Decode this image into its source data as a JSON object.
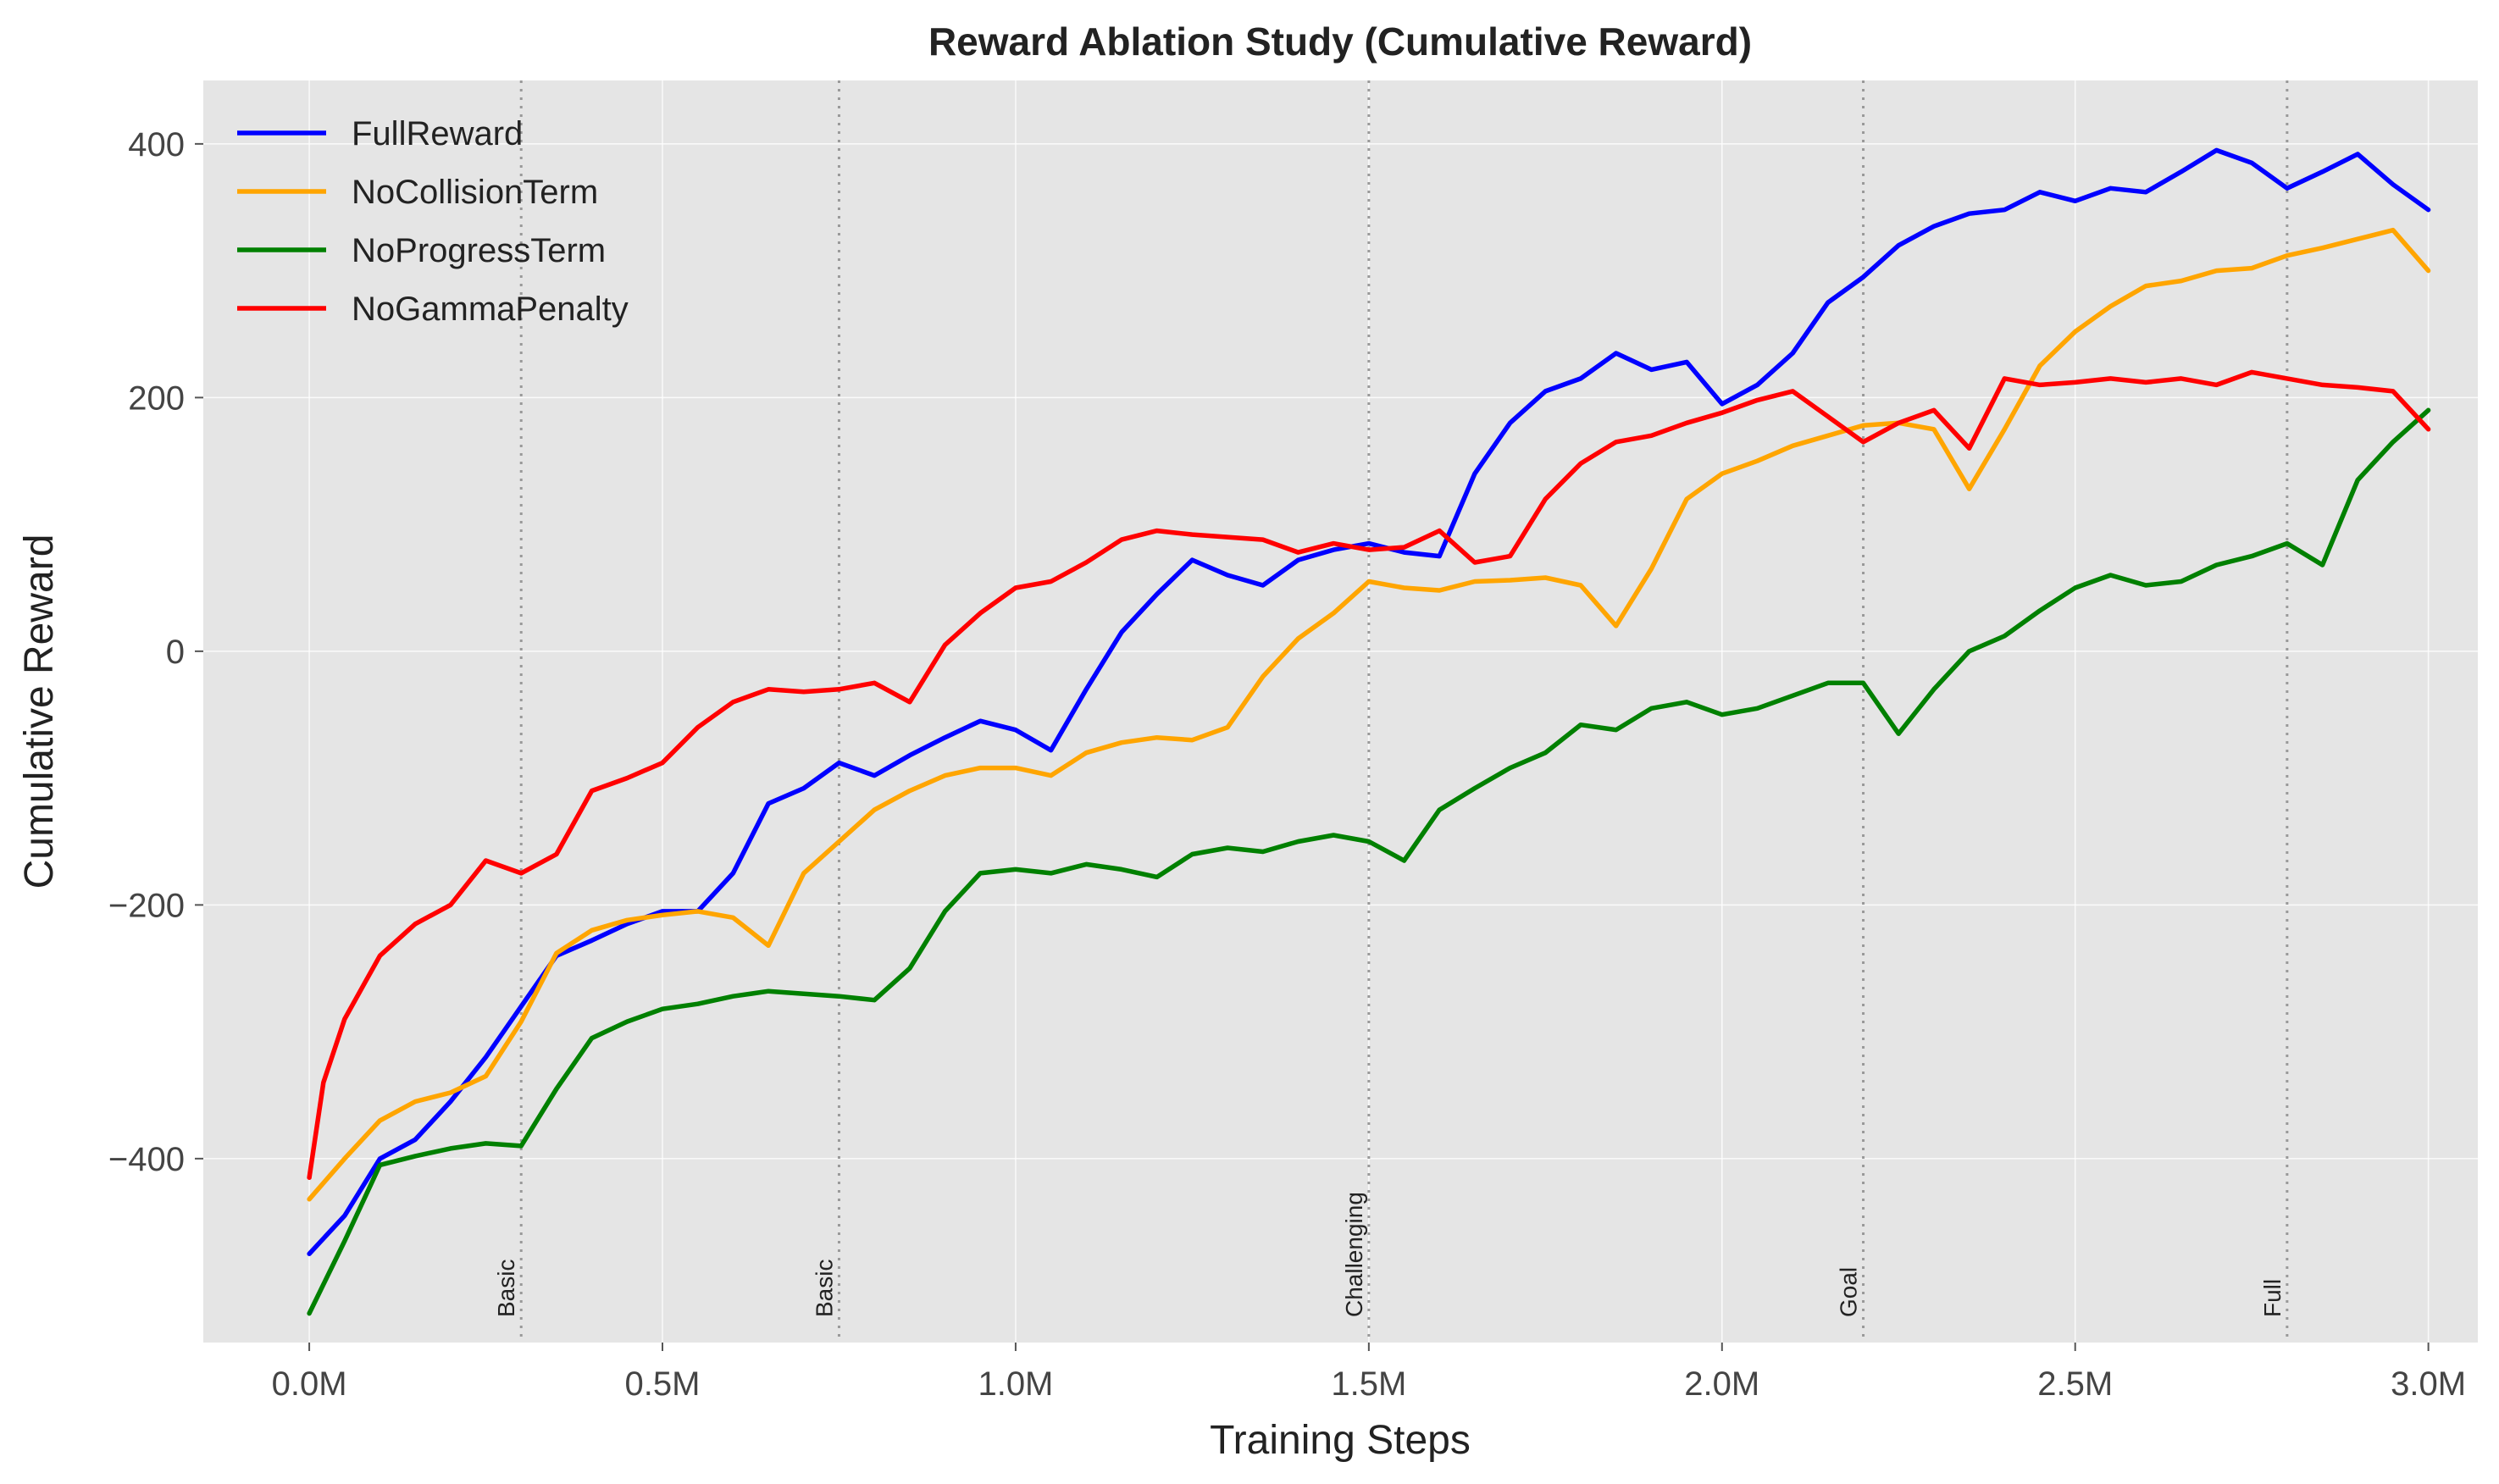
{
  "chart_data": {
    "type": "line",
    "title": "Reward Ablation Study (Cumulative Reward)",
    "xlabel": "Training Steps",
    "ylabel": "Cumulative Reward",
    "xlim": [
      -0.15,
      3.07
    ],
    "ylim": [
      -545,
      450
    ],
    "x_unit": "M steps",
    "grid": true,
    "legend_position": "upper-left",
    "x_ticks": [
      {
        "value": 0.0,
        "label": "0.0M"
      },
      {
        "value": 0.5,
        "label": "0.5M"
      },
      {
        "value": 1.0,
        "label": "1.0M"
      },
      {
        "value": 1.5,
        "label": "1.5M"
      },
      {
        "value": 2.0,
        "label": "2.0M"
      },
      {
        "value": 2.5,
        "label": "2.5M"
      },
      {
        "value": 3.0,
        "label": "3.0M"
      }
    ],
    "y_ticks": [
      {
        "value": -400,
        "label": "−400"
      },
      {
        "value": -200,
        "label": "−200"
      },
      {
        "value": 0,
        "label": "0"
      },
      {
        "value": 200,
        "label": "200"
      },
      {
        "value": 400,
        "label": "400"
      }
    ],
    "phase_markers": [
      {
        "x": 0.3,
        "label": "Basic"
      },
      {
        "x": 0.75,
        "label": "Basic"
      },
      {
        "x": 1.5,
        "label": "Challenging"
      },
      {
        "x": 2.2,
        "label": "Goal"
      },
      {
        "x": 2.8,
        "label": "Full"
      }
    ],
    "series": [
      {
        "name": "FullReward",
        "color": "#0000ff",
        "points": [
          [
            0,
            -475
          ],
          [
            0.05,
            -445
          ],
          [
            0.1,
            -400
          ],
          [
            0.15,
            -385
          ],
          [
            0.2,
            -355
          ],
          [
            0.25,
            -320
          ],
          [
            0.3,
            -280
          ],
          [
            0.35,
            -240
          ],
          [
            0.4,
            -228
          ],
          [
            0.45,
            -215
          ],
          [
            0.5,
            -205
          ],
          [
            0.55,
            -205
          ],
          [
            0.6,
            -175
          ],
          [
            0.65,
            -120
          ],
          [
            0.7,
            -108
          ],
          [
            0.75,
            -88
          ],
          [
            0.8,
            -98
          ],
          [
            0.85,
            -82
          ],
          [
            0.9,
            -68
          ],
          [
            0.95,
            -55
          ],
          [
            1.0,
            -62
          ],
          [
            1.05,
            -78
          ],
          [
            1.1,
            -30
          ],
          [
            1.15,
            15
          ],
          [
            1.2,
            45
          ],
          [
            1.25,
            72
          ],
          [
            1.3,
            60
          ],
          [
            1.35,
            52
          ],
          [
            1.4,
            72
          ],
          [
            1.45,
            80
          ],
          [
            1.5,
            85
          ],
          [
            1.55,
            78
          ],
          [
            1.6,
            75
          ],
          [
            1.65,
            140
          ],
          [
            1.7,
            180
          ],
          [
            1.75,
            205
          ],
          [
            1.8,
            215
          ],
          [
            1.85,
            235
          ],
          [
            1.9,
            222
          ],
          [
            1.95,
            228
          ],
          [
            2.0,
            195
          ],
          [
            2.05,
            210
          ],
          [
            2.1,
            235
          ],
          [
            2.15,
            275
          ],
          [
            2.2,
            295
          ],
          [
            2.25,
            320
          ],
          [
            2.3,
            335
          ],
          [
            2.35,
            345
          ],
          [
            2.4,
            348
          ],
          [
            2.45,
            362
          ],
          [
            2.5,
            355
          ],
          [
            2.55,
            365
          ],
          [
            2.6,
            362
          ],
          [
            2.65,
            378
          ],
          [
            2.7,
            395
          ],
          [
            2.75,
            385
          ],
          [
            2.8,
            365
          ],
          [
            2.85,
            378
          ],
          [
            2.9,
            392
          ],
          [
            2.95,
            368
          ],
          [
            3.0,
            348
          ]
        ]
      },
      {
        "name": "NoCollisionTerm",
        "color": "#ffa500",
        "points": [
          [
            0,
            -432
          ],
          [
            0.05,
            -400
          ],
          [
            0.1,
            -370
          ],
          [
            0.15,
            -355
          ],
          [
            0.2,
            -348
          ],
          [
            0.25,
            -335
          ],
          [
            0.3,
            -292
          ],
          [
            0.35,
            -238
          ],
          [
            0.4,
            -220
          ],
          [
            0.45,
            -212
          ],
          [
            0.5,
            -208
          ],
          [
            0.55,
            -205
          ],
          [
            0.6,
            -210
          ],
          [
            0.65,
            -232
          ],
          [
            0.7,
            -175
          ],
          [
            0.75,
            -150
          ],
          [
            0.8,
            -125
          ],
          [
            0.85,
            -110
          ],
          [
            0.9,
            -98
          ],
          [
            0.95,
            -92
          ],
          [
            1.0,
            -92
          ],
          [
            1.05,
            -98
          ],
          [
            1.1,
            -80
          ],
          [
            1.15,
            -72
          ],
          [
            1.2,
            -68
          ],
          [
            1.25,
            -70
          ],
          [
            1.3,
            -60
          ],
          [
            1.35,
            -20
          ],
          [
            1.4,
            10
          ],
          [
            1.45,
            30
          ],
          [
            1.5,
            55
          ],
          [
            1.55,
            50
          ],
          [
            1.6,
            48
          ],
          [
            1.65,
            55
          ],
          [
            1.7,
            56
          ],
          [
            1.75,
            58
          ],
          [
            1.8,
            52
          ],
          [
            1.85,
            20
          ],
          [
            1.9,
            65
          ],
          [
            1.95,
            120
          ],
          [
            2.0,
            140
          ],
          [
            2.05,
            150
          ],
          [
            2.1,
            162
          ],
          [
            2.15,
            170
          ],
          [
            2.2,
            178
          ],
          [
            2.25,
            180
          ],
          [
            2.3,
            175
          ],
          [
            2.35,
            128
          ],
          [
            2.4,
            175
          ],
          [
            2.45,
            225
          ],
          [
            2.5,
            252
          ],
          [
            2.55,
            272
          ],
          [
            2.6,
            288
          ],
          [
            2.65,
            292
          ],
          [
            2.7,
            300
          ],
          [
            2.75,
            302
          ],
          [
            2.8,
            312
          ],
          [
            2.85,
            318
          ],
          [
            2.9,
            325
          ],
          [
            2.95,
            332
          ],
          [
            3.0,
            300
          ]
        ]
      },
      {
        "name": "NoProgressTerm",
        "color": "#008000",
        "points": [
          [
            0,
            -522
          ],
          [
            0.05,
            -465
          ],
          [
            0.1,
            -405
          ],
          [
            0.15,
            -398
          ],
          [
            0.2,
            -392
          ],
          [
            0.25,
            -388
          ],
          [
            0.3,
            -390
          ],
          [
            0.35,
            -345
          ],
          [
            0.4,
            -305
          ],
          [
            0.45,
            -292
          ],
          [
            0.5,
            -282
          ],
          [
            0.55,
            -278
          ],
          [
            0.6,
            -272
          ],
          [
            0.65,
            -268
          ],
          [
            0.7,
            -270
          ],
          [
            0.75,
            -272
          ],
          [
            0.8,
            -275
          ],
          [
            0.85,
            -250
          ],
          [
            0.9,
            -205
          ],
          [
            0.95,
            -175
          ],
          [
            1.0,
            -172
          ],
          [
            1.05,
            -175
          ],
          [
            1.1,
            -168
          ],
          [
            1.15,
            -172
          ],
          [
            1.2,
            -178
          ],
          [
            1.25,
            -160
          ],
          [
            1.3,
            -155
          ],
          [
            1.35,
            -158
          ],
          [
            1.4,
            -150
          ],
          [
            1.45,
            -145
          ],
          [
            1.5,
            -150
          ],
          [
            1.55,
            -165
          ],
          [
            1.6,
            -125
          ],
          [
            1.65,
            -108
          ],
          [
            1.7,
            -92
          ],
          [
            1.75,
            -80
          ],
          [
            1.8,
            -58
          ],
          [
            1.85,
            -62
          ],
          [
            1.9,
            -45
          ],
          [
            1.95,
            -40
          ],
          [
            2.0,
            -50
          ],
          [
            2.05,
            -45
          ],
          [
            2.1,
            -35
          ],
          [
            2.15,
            -25
          ],
          [
            2.2,
            -25
          ],
          [
            2.25,
            -65
          ],
          [
            2.3,
            -30
          ],
          [
            2.35,
            0
          ],
          [
            2.4,
            12
          ],
          [
            2.45,
            32
          ],
          [
            2.5,
            50
          ],
          [
            2.55,
            60
          ],
          [
            2.6,
            52
          ],
          [
            2.65,
            55
          ],
          [
            2.7,
            68
          ],
          [
            2.75,
            75
          ],
          [
            2.8,
            85
          ],
          [
            2.85,
            68
          ],
          [
            2.9,
            135
          ],
          [
            2.95,
            165
          ],
          [
            3.0,
            190
          ]
        ]
      },
      {
        "name": "NoGammaPenalty",
        "color": "#ff0000",
        "points": [
          [
            0,
            -415
          ],
          [
            0.02,
            -340
          ],
          [
            0.05,
            -290
          ],
          [
            0.08,
            -260
          ],
          [
            0.1,
            -240
          ],
          [
            0.15,
            -215
          ],
          [
            0.2,
            -200
          ],
          [
            0.25,
            -165
          ],
          [
            0.3,
            -175
          ],
          [
            0.35,
            -160
          ],
          [
            0.4,
            -110
          ],
          [
            0.45,
            -100
          ],
          [
            0.5,
            -88
          ],
          [
            0.55,
            -60
          ],
          [
            0.6,
            -40
          ],
          [
            0.65,
            -30
          ],
          [
            0.7,
            -32
          ],
          [
            0.75,
            -30
          ],
          [
            0.8,
            -25
          ],
          [
            0.85,
            -40
          ],
          [
            0.9,
            5
          ],
          [
            0.95,
            30
          ],
          [
            1.0,
            50
          ],
          [
            1.05,
            55
          ],
          [
            1.1,
            70
          ],
          [
            1.15,
            88
          ],
          [
            1.2,
            95
          ],
          [
            1.25,
            92
          ],
          [
            1.3,
            90
          ],
          [
            1.35,
            88
          ],
          [
            1.4,
            78
          ],
          [
            1.45,
            85
          ],
          [
            1.5,
            80
          ],
          [
            1.55,
            82
          ],
          [
            1.6,
            95
          ],
          [
            1.65,
            70
          ],
          [
            1.7,
            75
          ],
          [
            1.75,
            120
          ],
          [
            1.8,
            148
          ],
          [
            1.85,
            165
          ],
          [
            1.9,
            170
          ],
          [
            1.95,
            180
          ],
          [
            2.0,
            188
          ],
          [
            2.05,
            198
          ],
          [
            2.1,
            205
          ],
          [
            2.15,
            185
          ],
          [
            2.2,
            165
          ],
          [
            2.25,
            180
          ],
          [
            2.3,
            190
          ],
          [
            2.35,
            160
          ],
          [
            2.4,
            215
          ],
          [
            2.45,
            210
          ],
          [
            2.5,
            212
          ],
          [
            2.55,
            215
          ],
          [
            2.6,
            212
          ],
          [
            2.65,
            215
          ],
          [
            2.7,
            210
          ],
          [
            2.75,
            220
          ],
          [
            2.8,
            215
          ],
          [
            2.85,
            210
          ],
          [
            2.9,
            208
          ],
          [
            2.95,
            205
          ],
          [
            3.0,
            175
          ]
        ]
      }
    ]
  }
}
